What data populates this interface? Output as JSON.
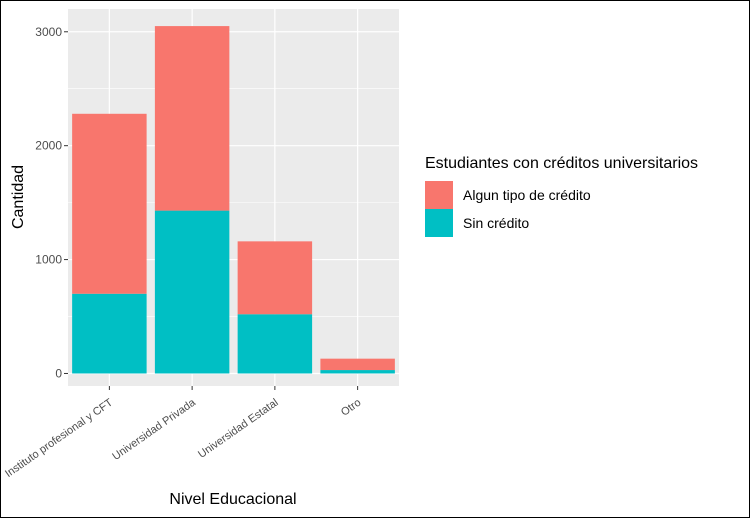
{
  "chart_data": {
    "type": "bar",
    "stacked": true,
    "categories": [
      "Instituto profesional y CFT",
      "Universidad Privada",
      "Universidad Estatal",
      "Otro"
    ],
    "series": [
      {
        "name": "Algun tipo de crédito",
        "values": [
          1580,
          1620,
          640,
          100
        ],
        "color": "#F8766D"
      },
      {
        "name": "Sin crédito",
        "values": [
          700,
          1430,
          520,
          30
        ],
        "color": "#00BFC4"
      }
    ],
    "xlabel": "Nivel Educacional",
    "ylabel": "Cantidad",
    "ylim": [
      -110,
      3200
    ],
    "yticks": [
      0,
      1000,
      2000,
      3000
    ],
    "grid": true,
    "legend": {
      "title": "Estudiantes con créditos universitarios",
      "placement": "right"
    }
  }
}
